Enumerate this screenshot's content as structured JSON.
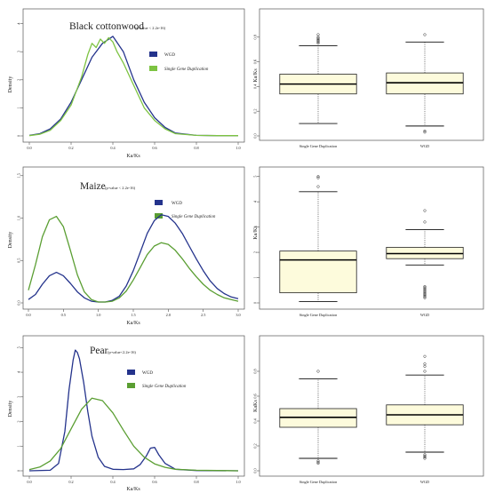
{
  "colors": {
    "wgd_line": "#24338c",
    "single_line_light": "#7dc342",
    "single_line_dark": "#5a9e32",
    "box_fill": "#fdfbdc"
  },
  "chart_data": [
    {
      "id": "cottonwood-density",
      "type": "line",
      "title": "Black cottonwood",
      "subtitle": "(p-value < 2.2e-16)",
      "xlabel": "Ka/Ks",
      "ylabel": "Density",
      "xlim": [
        0,
        1.0
      ],
      "ylim": [
        0,
        4.4
      ],
      "xticks": [
        "0.0",
        "0.2",
        "0.4",
        "0.6",
        "0.8",
        "1.0"
      ],
      "yticks": [
        "0",
        "1",
        "2",
        "3",
        "4"
      ],
      "legend": "right",
      "series": [
        {
          "name": "WGD",
          "color": "#24338c",
          "x": [
            0,
            0.05,
            0.1,
            0.15,
            0.2,
            0.25,
            0.3,
            0.35,
            0.4,
            0.45,
            0.5,
            0.55,
            0.6,
            0.65,
            0.7,
            0.8,
            0.9,
            1.0
          ],
          "y": [
            0.02,
            0.08,
            0.25,
            0.6,
            1.2,
            2.0,
            2.8,
            3.3,
            3.55,
            3.0,
            2.0,
            1.2,
            0.65,
            0.3,
            0.1,
            0.02,
            0.01,
            0.01
          ]
        },
        {
          "name": "Single Gene Duplication",
          "color": "#7dc342",
          "x": [
            0,
            0.05,
            0.1,
            0.15,
            0.2,
            0.25,
            0.28,
            0.3,
            0.32,
            0.34,
            0.36,
            0.38,
            0.4,
            0.42,
            0.45,
            0.5,
            0.55,
            0.6,
            0.65,
            0.7,
            0.8,
            0.9,
            1.0
          ],
          "y": [
            0.01,
            0.06,
            0.2,
            0.55,
            1.1,
            2.1,
            2.9,
            3.3,
            3.15,
            3.45,
            3.3,
            3.5,
            3.35,
            3.0,
            2.6,
            1.8,
            1.0,
            0.55,
            0.25,
            0.08,
            0.02,
            0.01,
            0.01
          ]
        }
      ]
    },
    {
      "id": "cottonwood-box",
      "type": "box",
      "ylabel": "Ka/Ks",
      "ylim": [
        0,
        1.0
      ],
      "yticks": [
        "0.0",
        "0.2",
        "0.4",
        "0.6",
        "0.8"
      ],
      "groups": [
        {
          "name": "Single Gene Duplication",
          "lower_whisker": 0.1,
          "q1": 0.34,
          "median": 0.42,
          "q3": 0.5,
          "upper_whisker": 0.73,
          "outliers": [
            0.75,
            0.76,
            0.77,
            0.78,
            0.79,
            0.8,
            0.82
          ]
        },
        {
          "name": "WGD",
          "lower_whisker": 0.08,
          "q1": 0.34,
          "median": 0.43,
          "q3": 0.51,
          "upper_whisker": 0.76,
          "outliers": [
            0.03,
            0.04,
            0.82
          ]
        }
      ]
    },
    {
      "id": "maize-density",
      "type": "line",
      "title": "Maize",
      "subtitle": "(p-value < 2.2e-16)",
      "xlabel": "Ka/Ks",
      "ylabel": "Density",
      "xlim": [
        0,
        3.0
      ],
      "ylim": [
        0,
        1.55
      ],
      "xticks": [
        "0.0",
        "0.5",
        "1.0",
        "1.5",
        "2.0",
        "2.5",
        "3.0"
      ],
      "yticks": [
        "0.0",
        "0.5",
        "1.0",
        "1.5"
      ],
      "legend": "right",
      "series": [
        {
          "name": "WGD",
          "color": "#24338c",
          "x": [
            0,
            0.1,
            0.2,
            0.3,
            0.4,
            0.5,
            0.6,
            0.7,
            0.8,
            0.9,
            1.0,
            1.1,
            1.2,
            1.3,
            1.4,
            1.5,
            1.6,
            1.7,
            1.8,
            1.9,
            2.0,
            2.1,
            2.2,
            2.3,
            2.4,
            2.5,
            2.6,
            2.7,
            2.8,
            2.9,
            3.0
          ],
          "y": [
            0.04,
            0.1,
            0.22,
            0.32,
            0.36,
            0.32,
            0.23,
            0.13,
            0.06,
            0.02,
            0.01,
            0.01,
            0.03,
            0.08,
            0.2,
            0.38,
            0.6,
            0.82,
            0.97,
            1.04,
            1.02,
            0.94,
            0.82,
            0.67,
            0.52,
            0.38,
            0.26,
            0.17,
            0.11,
            0.07,
            0.05
          ]
        },
        {
          "name": "Single Gene Duplication",
          "color": "#5a9e32",
          "x": [
            0,
            0.1,
            0.2,
            0.3,
            0.4,
            0.5,
            0.6,
            0.7,
            0.8,
            0.9,
            1.0,
            1.1,
            1.2,
            1.3,
            1.4,
            1.5,
            1.6,
            1.7,
            1.8,
            1.9,
            2.0,
            2.1,
            2.2,
            2.3,
            2.4,
            2.5,
            2.6,
            2.7,
            2.8,
            2.9,
            3.0
          ],
          "y": [
            0.15,
            0.45,
            0.78,
            0.98,
            1.02,
            0.9,
            0.62,
            0.33,
            0.13,
            0.04,
            0.01,
            0.01,
            0.02,
            0.06,
            0.14,
            0.27,
            0.42,
            0.57,
            0.67,
            0.71,
            0.69,
            0.62,
            0.52,
            0.41,
            0.31,
            0.22,
            0.15,
            0.1,
            0.06,
            0.04,
            0.02
          ]
        }
      ]
    },
    {
      "id": "maize-box",
      "type": "box",
      "ylabel": "Ka/Ks",
      "ylim": [
        0,
        5.2
      ],
      "yticks": [
        "0",
        "1",
        "2",
        "3",
        "4",
        "5"
      ],
      "groups": [
        {
          "name": "Single Gene Duplication",
          "lower_whisker": 0.05,
          "q1": 0.4,
          "median": 1.7,
          "q3": 2.05,
          "upper_whisker": 4.4,
          "outliers": [
            4.6,
            4.95,
            5.0
          ]
        },
        {
          "name": "WGD",
          "lower_whisker": 1.5,
          "q1": 1.75,
          "median": 1.95,
          "q3": 2.2,
          "upper_whisker": 2.9,
          "outliers": [
            0.2,
            0.25,
            0.3,
            0.35,
            0.4,
            0.45,
            0.5,
            0.55,
            0.6,
            0.65,
            3.2,
            3.65
          ]
        }
      ]
    },
    {
      "id": "pear-density",
      "type": "line",
      "title": "Pear",
      "subtitle": "(p-value<2.2e-16)",
      "xlabel": "Ka/Ks",
      "ylabel": "Density",
      "xlim": [
        0,
        1.0
      ],
      "ylim": [
        0,
        5.3
      ],
      "xticks": [
        "0.0",
        "0.2",
        "0.4",
        "0.6",
        "0.8",
        "1.0"
      ],
      "yticks": [
        "0",
        "1",
        "2",
        "3",
        "4",
        "5"
      ],
      "legend": "right",
      "series": [
        {
          "name": "WGD",
          "color": "#24338c",
          "x": [
            0,
            0.1,
            0.14,
            0.17,
            0.19,
            0.21,
            0.22,
            0.23,
            0.24,
            0.26,
            0.28,
            0.3,
            0.33,
            0.36,
            0.4,
            0.45,
            0.5,
            0.53,
            0.56,
            0.58,
            0.6,
            0.62,
            0.65,
            0.7,
            0.8,
            1.0
          ],
          "y": [
            0.0,
            0.02,
            0.3,
            1.6,
            3.3,
            4.5,
            4.9,
            4.8,
            4.55,
            3.6,
            2.4,
            1.4,
            0.55,
            0.18,
            0.06,
            0.05,
            0.08,
            0.25,
            0.6,
            0.92,
            0.95,
            0.65,
            0.3,
            0.06,
            0.01,
            0.0
          ]
        },
        {
          "name": "Single Gene Duplication",
          "color": "#5a9e32",
          "x": [
            0,
            0.05,
            0.1,
            0.15,
            0.2,
            0.25,
            0.3,
            0.35,
            0.4,
            0.45,
            0.5,
            0.55,
            0.6,
            0.65,
            0.7,
            0.8,
            0.9,
            1.0
          ],
          "y": [
            0.05,
            0.15,
            0.4,
            0.9,
            1.7,
            2.5,
            2.95,
            2.85,
            2.35,
            1.65,
            1.0,
            0.55,
            0.28,
            0.14,
            0.06,
            0.02,
            0.01,
            0.0
          ]
        }
      ]
    },
    {
      "id": "pear-box",
      "type": "box",
      "ylabel": "KaKs",
      "ylim": [
        0,
        1.05
      ],
      "yticks": [
        "0.0",
        "0.2",
        "0.4",
        "0.6",
        "0.8"
      ],
      "groups": [
        {
          "name": "Single Gene Duplication",
          "lower_whisker": 0.1,
          "q1": 0.35,
          "median": 0.43,
          "q3": 0.5,
          "upper_whisker": 0.74,
          "outliers": [
            0.06,
            0.07,
            0.08,
            0.8
          ]
        },
        {
          "name": "WGD",
          "lower_whisker": 0.15,
          "q1": 0.37,
          "median": 0.45,
          "q3": 0.53,
          "upper_whisker": 0.77,
          "outliers": [
            0.1,
            0.11,
            0.12,
            0.13,
            0.8,
            0.84,
            0.86,
            0.92
          ]
        }
      ]
    }
  ]
}
